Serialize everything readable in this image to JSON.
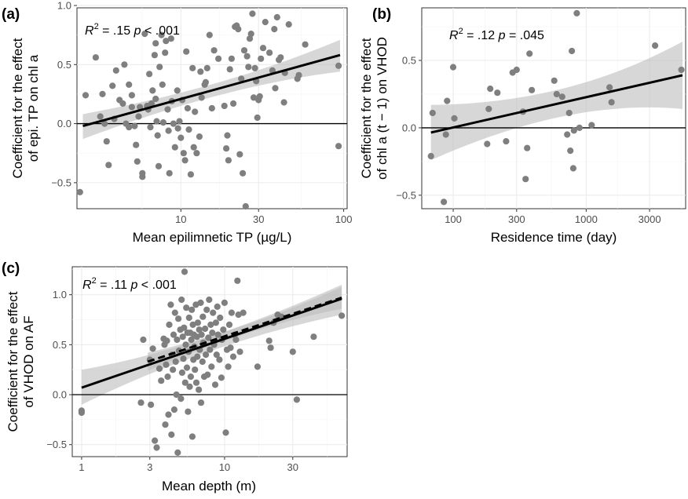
{
  "chart_data": [
    {
      "panel": "(a)",
      "type": "scatter",
      "xlabel": "Mean epilimnetic TP (µg/L)",
      "ylabel": [
        "Coefficient for the effect",
        "of epi. TP on chl a"
      ],
      "ylabel_italic_tail": "a",
      "x_scale": "log10",
      "xlim": [
        2.3,
        105
      ],
      "ylim": [
        -0.72,
        0.98
      ],
      "xticks": [
        10,
        30,
        100
      ],
      "xtick_labels": [
        "10",
        "30",
        "100"
      ],
      "yticks": [
        -0.5,
        0.0,
        0.5,
        1.0
      ],
      "ytick_labels": [
        "−0.5",
        "0.0",
        "0.5",
        "1.0"
      ],
      "annotation": {
        "r2": ".15",
        "p_op": "<",
        "p": ".001"
      },
      "fit": {
        "x": [
          2.5,
          95
        ],
        "y": [
          -0.02,
          0.58
        ],
        "band_lo": [
          -0.13,
          0.44
        ],
        "band_hi": [
          0.08,
          0.71
        ]
      },
      "points": [
        [
          2.4,
          -0.58
        ],
        [
          2.6,
          0.24
        ],
        [
          3.0,
          0.56
        ],
        [
          3.2,
          0.06
        ],
        [
          3.3,
          0.25
        ],
        [
          3.4,
          0.0
        ],
        [
          3.5,
          -0.15
        ],
        [
          3.6,
          -0.35
        ],
        [
          3.8,
          0.32
        ],
        [
          3.9,
          0.04
        ],
        [
          4.0,
          0.45
        ],
        [
          4.2,
          0.2
        ],
        [
          4.4,
          0.17
        ],
        [
          4.5,
          0.5
        ],
        [
          4.6,
          0.0
        ],
        [
          4.8,
          -0.03
        ],
        [
          4.8,
          0.33
        ],
        [
          5.0,
          0.24
        ],
        [
          5.0,
          0.14
        ],
        [
          5.2,
          -0.02
        ],
        [
          5.3,
          -0.18
        ],
        [
          5.4,
          -0.32
        ],
        [
          5.5,
          0.06
        ],
        [
          5.6,
          0.14
        ],
        [
          5.8,
          -0.45
        ],
        [
          5.8,
          -0.42
        ],
        [
          6.0,
          0.76
        ],
        [
          6.2,
          0.15
        ],
        [
          6.3,
          0.12
        ],
        [
          6.4,
          0.42
        ],
        [
          6.5,
          -0.03
        ],
        [
          6.6,
          0.17
        ],
        [
          6.7,
          0.28
        ],
        [
          6.9,
          0.58
        ],
        [
          7.0,
          0.68
        ],
        [
          7.0,
          0.21
        ],
        [
          7.1,
          0.02
        ],
        [
          7.2,
          -0.1
        ],
        [
          7.3,
          -0.36
        ],
        [
          7.4,
          0.48
        ],
        [
          7.6,
          0.75
        ],
        [
          7.7,
          0.33
        ],
        [
          7.8,
          0.01
        ],
        [
          8.0,
          0.6
        ],
        [
          8.1,
          0.7
        ],
        [
          8.3,
          0.12
        ],
        [
          8.4,
          -0.06
        ],
        [
          8.5,
          -0.42
        ],
        [
          8.7,
          0.72
        ],
        [
          8.8,
          0.19
        ],
        [
          9.0,
          0.0
        ],
        [
          9.2,
          -0.2
        ],
        [
          9.5,
          0.28
        ],
        [
          9.6,
          -0.04
        ],
        [
          9.8,
          0.02
        ],
        [
          10.0,
          -0.12
        ],
        [
          10.2,
          0.2
        ],
        [
          10.4,
          -0.25
        ],
        [
          10.6,
          -0.31
        ],
        [
          10.8,
          0.61
        ],
        [
          11.0,
          0.13
        ],
        [
          11.2,
          -0.05
        ],
        [
          11.5,
          -0.43
        ],
        [
          11.8,
          0.47
        ],
        [
          12.0,
          -0.2
        ],
        [
          12.2,
          0.1
        ],
        [
          12.5,
          -0.25
        ],
        [
          13.0,
          -0.11
        ],
        [
          13.2,
          0.44
        ],
        [
          13.4,
          0.22
        ],
        [
          14.0,
          0.33
        ],
        [
          14.2,
          0.35
        ],
        [
          14.5,
          0.47
        ],
        [
          15.0,
          0.75
        ],
        [
          15.5,
          0.13
        ],
        [
          16.0,
          0.62
        ],
        [
          17.0,
          0.55
        ],
        [
          18.5,
          0.15
        ],
        [
          19.0,
          -0.21
        ],
        [
          19.3,
          -0.1
        ],
        [
          19.6,
          -0.31
        ],
        [
          20.0,
          0.46
        ],
        [
          20.5,
          0.55
        ],
        [
          21.0,
          0.17
        ],
        [
          21.5,
          0.82
        ],
        [
          22.0,
          0.83
        ],
        [
          22.5,
          0.8
        ],
        [
          23.0,
          -0.26
        ],
        [
          23.5,
          0.38
        ],
        [
          24.0,
          -0.42
        ],
        [
          24.5,
          0.62
        ],
        [
          25.0,
          -0.7
        ],
        [
          25.5,
          0.57
        ],
        [
          26.0,
          0.48
        ],
        [
          26.5,
          0.72
        ],
        [
          27.0,
          0.76
        ],
        [
          27.5,
          0.93
        ],
        [
          28.0,
          0.22
        ],
        [
          28.5,
          0.47
        ],
        [
          29.0,
          0.36
        ],
        [
          29.5,
          0.05
        ],
        [
          30.0,
          0.2
        ],
        [
          30.5,
          0.23
        ],
        [
          31.0,
          0.55
        ],
        [
          32.0,
          0.64
        ],
        [
          33.0,
          0.86
        ],
        [
          35.0,
          0.6
        ],
        [
          36.5,
          0.45
        ],
        [
          37.5,
          0.8
        ],
        [
          38.0,
          0.3
        ],
        [
          39.0,
          0.9
        ],
        [
          40.0,
          0.54
        ],
        [
          41.0,
          0.56
        ],
        [
          43.0,
          0.18
        ],
        [
          43.5,
          0.43
        ],
        [
          46.0,
          0.84
        ],
        [
          52.0,
          0.38
        ],
        [
          53.0,
          0.41
        ],
        [
          58.0,
          0.67
        ],
        [
          93.0,
          0.49
        ],
        [
          93.0,
          -0.19
        ]
      ]
    },
    {
      "panel": "(b)",
      "type": "scatter",
      "xlabel": "Residence time (day)",
      "ylabel": [
        "Coefficient for the effect",
        "of chl a (t − 1) on VHOD"
      ],
      "x_scale": "log10",
      "xlim": [
        58,
        5600
      ],
      "ylim": [
        -0.6,
        0.89
      ],
      "xticks": [
        100,
        300,
        1000,
        3000
      ],
      "xtick_labels": [
        "100",
        "300",
        "1000",
        "3000"
      ],
      "yticks": [
        -0.5,
        0.0,
        0.5
      ],
      "ytick_labels": [
        "−0.5",
        "0.0",
        "0.5"
      ],
      "annotation": {
        "r2": ".12",
        "p_op": "=",
        "p": ".045"
      },
      "fit": {
        "x": [
          68,
          5300
        ],
        "y": [
          -0.035,
          0.39
        ],
        "band_lo": [
          -0.24,
          0.14
        ],
        "band_hi": [
          0.17,
          0.64
        ]
      },
      "points": [
        [
          68,
          -0.21
        ],
        [
          70,
          0.11
        ],
        [
          85,
          -0.55
        ],
        [
          88,
          -0.05
        ],
        [
          90,
          0.2
        ],
        [
          100,
          0.45
        ],
        [
          102,
          0.07
        ],
        [
          180,
          -0.12
        ],
        [
          185,
          0.14
        ],
        [
          190,
          0.29
        ],
        [
          215,
          0.26
        ],
        [
          250,
          -0.1
        ],
        [
          280,
          0.41
        ],
        [
          300,
          0.43
        ],
        [
          335,
          0.12
        ],
        [
          350,
          -0.38
        ],
        [
          360,
          -0.15
        ],
        [
          375,
          0.55
        ],
        [
          390,
          0.28
        ],
        [
          575,
          0.35
        ],
        [
          600,
          0.25
        ],
        [
          660,
          0.23
        ],
        [
          720,
          -0.05
        ],
        [
          745,
          0.11
        ],
        [
          760,
          -0.17
        ],
        [
          780,
          0.57
        ],
        [
          800,
          -0.3
        ],
        [
          810,
          -0.02
        ],
        [
          850,
          0.85
        ],
        [
          890,
          0.0
        ],
        [
          1100,
          0.02
        ],
        [
          1500,
          0.3
        ],
        [
          1550,
          0.19
        ],
        [
          3300,
          0.61
        ],
        [
          5200,
          0.43
        ]
      ]
    },
    {
      "panel": "(c)",
      "type": "scatter",
      "xlabel": "Mean depth (m)",
      "ylabel": [
        "Coefficient for the effect",
        "of VHOD on AF"
      ],
      "x_scale": "log10",
      "xlim": [
        0.86,
        72
      ],
      "ylim": [
        -0.62,
        1.28
      ],
      "xticks": [
        1,
        3,
        10,
        30
      ],
      "xtick_labels": [
        "1",
        "3",
        "10",
        "30"
      ],
      "yticks": [
        -0.5,
        0.0,
        0.5,
        1.0
      ],
      "ytick_labels": [
        "−0.5",
        "0.0",
        "0.5",
        "1.0"
      ],
      "annotation": {
        "r2": ".11",
        "p_op": "<",
        "p": ".001"
      },
      "fit": {
        "x": [
          1.0,
          66
        ],
        "y": [
          0.07,
          0.96
        ],
        "band_lo": [
          -0.1,
          0.8
        ],
        "band_hi": [
          0.25,
          1.1
        ]
      },
      "fit2": {
        "x": [
          2.9,
          66
        ],
        "y": [
          0.33,
          0.97
        ],
        "band_lo": [
          0.24,
          0.86
        ],
        "band_hi": [
          0.42,
          1.08
        ]
      },
      "points": [
        [
          1.0,
          -0.16
        ],
        [
          1.0,
          -0.18
        ],
        [
          2.6,
          -0.08
        ],
        [
          2.7,
          0.55
        ],
        [
          3.0,
          0.35
        ],
        [
          3.05,
          -0.1
        ],
        [
          3.15,
          0.46
        ],
        [
          3.25,
          -0.46
        ],
        [
          3.35,
          -0.53
        ],
        [
          3.5,
          0.26
        ],
        [
          3.6,
          0.14
        ],
        [
          3.75,
          0.56
        ],
        [
          3.8,
          0.5
        ],
        [
          3.85,
          -0.3
        ],
        [
          3.9,
          0.3
        ],
        [
          3.95,
          0.54
        ],
        [
          4.0,
          0.18
        ],
        [
          4.05,
          -0.2
        ],
        [
          4.1,
          0.7
        ],
        [
          4.2,
          0.9
        ],
        [
          4.25,
          -0.4
        ],
        [
          4.3,
          0.4
        ],
        [
          4.35,
          0.25
        ],
        [
          4.4,
          0.6
        ],
        [
          4.45,
          -0.15
        ],
        [
          4.5,
          0.82
        ],
        [
          4.55,
          0.33
        ],
        [
          4.6,
          0.0
        ],
        [
          4.65,
          0.55
        ],
        [
          4.7,
          -0.58
        ],
        [
          4.75,
          0.76
        ],
        [
          4.8,
          0.44
        ],
        [
          4.9,
          0.65
        ],
        [
          4.95,
          -0.04
        ],
        [
          5.0,
          0.95
        ],
        [
          5.05,
          0.22
        ],
        [
          5.1,
          0.58
        ],
        [
          5.15,
          0.36
        ],
        [
          5.2,
          0.67
        ],
        [
          5.25,
          1.23
        ],
        [
          5.3,
          0.12
        ],
        [
          5.35,
          0.5
        ],
        [
          5.4,
          0.87
        ],
        [
          5.45,
          0.27
        ],
        [
          5.5,
          0.62
        ],
        [
          5.55,
          -0.17
        ],
        [
          5.6,
          0.43
        ],
        [
          5.65,
          0.77
        ],
        [
          5.7,
          0.08
        ],
        [
          5.75,
          0.62
        ],
        [
          5.8,
          0.18
        ],
        [
          5.85,
          0.55
        ],
        [
          5.9,
          0.85
        ],
        [
          5.95,
          -0.42
        ],
        [
          6.0,
          0.7
        ],
        [
          6.05,
          0.35
        ],
        [
          6.1,
          0.6
        ],
        [
          6.15,
          0.48
        ],
        [
          6.2,
          0.25
        ],
        [
          6.3,
          0.9
        ],
        [
          6.35,
          0.12
        ],
        [
          6.4,
          0.58
        ],
        [
          6.45,
          0.38
        ],
        [
          6.5,
          0.72
        ],
        [
          6.6,
          0.05
        ],
        [
          6.65,
          0.65
        ],
        [
          6.7,
          0.45
        ],
        [
          6.8,
          0.92
        ],
        [
          6.85,
          -0.08
        ],
        [
          6.9,
          0.6
        ],
        [
          7.0,
          0.33
        ],
        [
          7.05,
          0.78
        ],
        [
          7.1,
          0.52
        ],
        [
          7.2,
          0.18
        ],
        [
          7.3,
          0.66
        ],
        [
          7.4,
          0.4
        ],
        [
          7.5,
          0.85
        ],
        [
          7.6,
          0.2
        ],
        [
          7.7,
          0.57
        ],
        [
          7.8,
          0.95
        ],
        [
          7.9,
          0.45
        ],
        [
          8.0,
          0.7
        ],
        [
          8.1,
          0.28
        ],
        [
          8.2,
          0.62
        ],
        [
          8.3,
          0.82
        ],
        [
          8.45,
          0.5
        ],
        [
          8.6,
          0.1
        ],
        [
          8.7,
          0.72
        ],
        [
          8.8,
          0.4
        ],
        [
          8.9,
          0.88
        ],
        [
          9.0,
          0.6
        ],
        [
          9.2,
          0.35
        ],
        [
          9.3,
          0.77
        ],
        [
          9.5,
          0.17
        ],
        [
          9.6,
          0.55
        ],
        [
          9.8,
          0.65
        ],
        [
          10.0,
          0.92
        ],
        [
          10.2,
          -0.38
        ],
        [
          10.4,
          0.45
        ],
        [
          10.6,
          0.28
        ],
        [
          10.8,
          0.7
        ],
        [
          11.0,
          0.47
        ],
        [
          11.2,
          0.82
        ],
        [
          11.5,
          0.38
        ],
        [
          11.8,
          0.6
        ],
        [
          12.0,
          0.55
        ],
        [
          12.3,
          1.14
        ],
        [
          12.5,
          0.8
        ],
        [
          12.8,
          0.43
        ],
        [
          13.5,
          0.82
        ],
        [
          17.0,
          0.28
        ],
        [
          20.5,
          0.54
        ],
        [
          21.0,
          0.47
        ],
        [
          22.0,
          0.72
        ],
        [
          23.5,
          0.8
        ],
        [
          25.0,
          0.78
        ],
        [
          30.0,
          0.43
        ],
        [
          32.0,
          -0.05
        ],
        [
          42.0,
          0.58
        ],
        [
          66.0,
          0.79
        ]
      ]
    }
  ],
  "colors": {
    "point": "#7f7f7f",
    "fit": "#000000",
    "ribbon": "#bdbdbd",
    "panel_border": "#333333",
    "grid": "#ebebeb"
  }
}
